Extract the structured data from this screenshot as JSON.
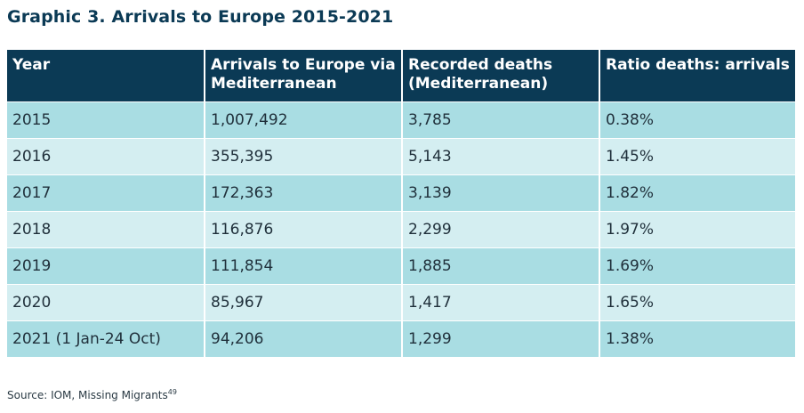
{
  "title": "Graphic 3. Arrivals to Europe 2015-2021",
  "chart_data": {
    "type": "table",
    "columns": [
      [
        "Arrivals to Europe via",
        "Mediterranean"
      ],
      [
        "Recorded deaths",
        "(Mediterranean)"
      ]
    ],
    "header": {
      "year": "Year",
      "arrivals_line1": "Arrivals to Europe via",
      "arrivals_line2": "Mediterranean",
      "deaths_line1": "Recorded deaths",
      "deaths_line2": "(Mediterranean)",
      "ratio": "Ratio deaths: arrivals"
    },
    "rows": [
      [
        "2015",
        "1,007,492",
        "3,785",
        "0.38%"
      ],
      [
        "2016",
        "355,395",
        "5,143",
        "1.45%"
      ],
      [
        "2017",
        "172,363",
        "3,139",
        "1.82%"
      ],
      [
        "2018",
        "116,876",
        "2,299",
        "1.97%"
      ],
      [
        "2019",
        "111,854",
        "1,885",
        "1.69%"
      ],
      [
        "2020",
        "85,967",
        "1,417",
        "1.65%"
      ],
      [
        "2021 (1 Jan-24 Oct)",
        "94,206",
        "1,299",
        "1.38%"
      ]
    ]
  },
  "source": {
    "text": "Source: IOM, Missing Migrants",
    "footnote": "49"
  },
  "colors": {
    "header_bg": "#0b3a55",
    "row_dark": "#a9dde3",
    "row_light": "#d4eef1"
  }
}
